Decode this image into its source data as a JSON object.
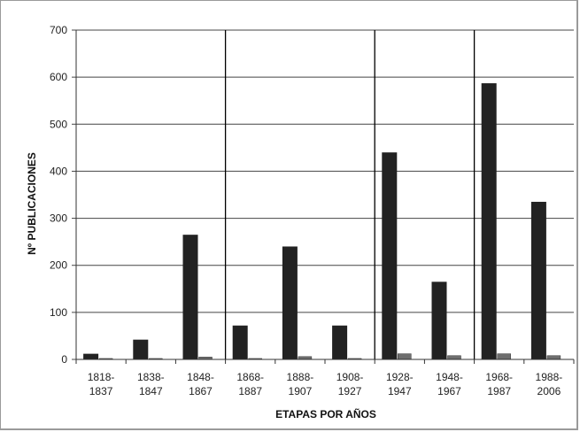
{
  "chart_data": {
    "type": "bar",
    "title": "",
    "xlabel": "ETAPAS POR AÑOS",
    "ylabel": "Nº PUBLICACIONES",
    "ylim": [
      0,
      700
    ],
    "yticks": [
      0,
      100,
      200,
      300,
      400,
      500,
      600,
      700
    ],
    "grid": true,
    "categories": [
      [
        "1818-",
        "1837"
      ],
      [
        "1838-",
        "1847"
      ],
      [
        "1848-",
        "1867"
      ],
      [
        "1868-",
        "1887"
      ],
      [
        "1888-",
        "1907"
      ],
      [
        "1908-",
        "1927"
      ],
      [
        "1928-",
        "1947"
      ],
      [
        "1948-",
        "1967"
      ],
      [
        "1968-",
        "1987"
      ],
      [
        "1988-",
        "2006"
      ]
    ],
    "series": [
      {
        "values": [
          12,
          42,
          265,
          72,
          240,
          72,
          440,
          165,
          587,
          335
        ],
        "color": "#222222"
      },
      {
        "values": [
          2,
          2,
          5,
          2,
          6,
          2,
          12,
          8,
          12,
          8
        ],
        "color": "#6e6e6e"
      }
    ],
    "stage_dividers_after_category": [
      2,
      5,
      7
    ]
  }
}
